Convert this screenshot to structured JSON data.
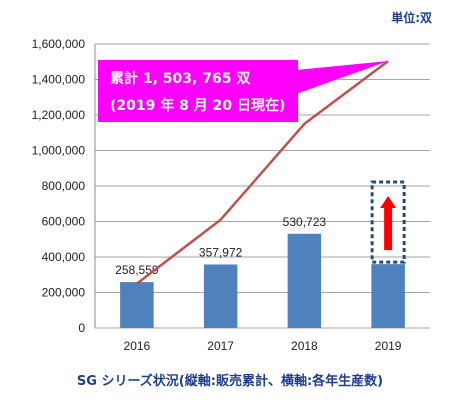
{
  "chart_data": {
    "type": "bar",
    "categories": [
      "2016",
      "2017",
      "2018",
      "2019"
    ],
    "series": [
      {
        "type": "bar",
        "values": [
          258559,
          357972,
          530723,
          360000
        ]
      },
      {
        "type": "line",
        "values": [
          250000,
          610000,
          1150000,
          1503765
        ]
      }
    ],
    "bar_data_labels": [
      "258,559",
      "357,972",
      "530,723",
      ""
    ],
    "ylim": [
      0,
      1600000
    ],
    "yticks": [
      0,
      200000,
      400000,
      600000,
      800000,
      1000000,
      1200000,
      1400000,
      1600000
    ],
    "ytick_labels": [
      "0",
      "200,000",
      "400,000",
      "600,000",
      "800,000",
      "1,000,000",
      "1,200,000",
      "1,400,000",
      "1,600,000"
    ],
    "unit_label": "単位:双",
    "caption": "SG シリーズ状況(縦軸:販売累計、横軸:各年生産数)",
    "callout": {
      "line1": "累計 1, 503, 765 双",
      "line2": "(2019 年 8 月 20 日現在)"
    },
    "grid": true,
    "annotations": [
      "dashed box with red up arrow above 2019 bar"
    ],
    "colors": {
      "bar": "#4f81bd",
      "line": "#c0504d",
      "callout": "#ff00ff",
      "grid": "#a6a6a6",
      "dashed_box": "#1f4e79",
      "arrow": "#ff0000",
      "text_blue": "#1f3f8f"
    }
  }
}
